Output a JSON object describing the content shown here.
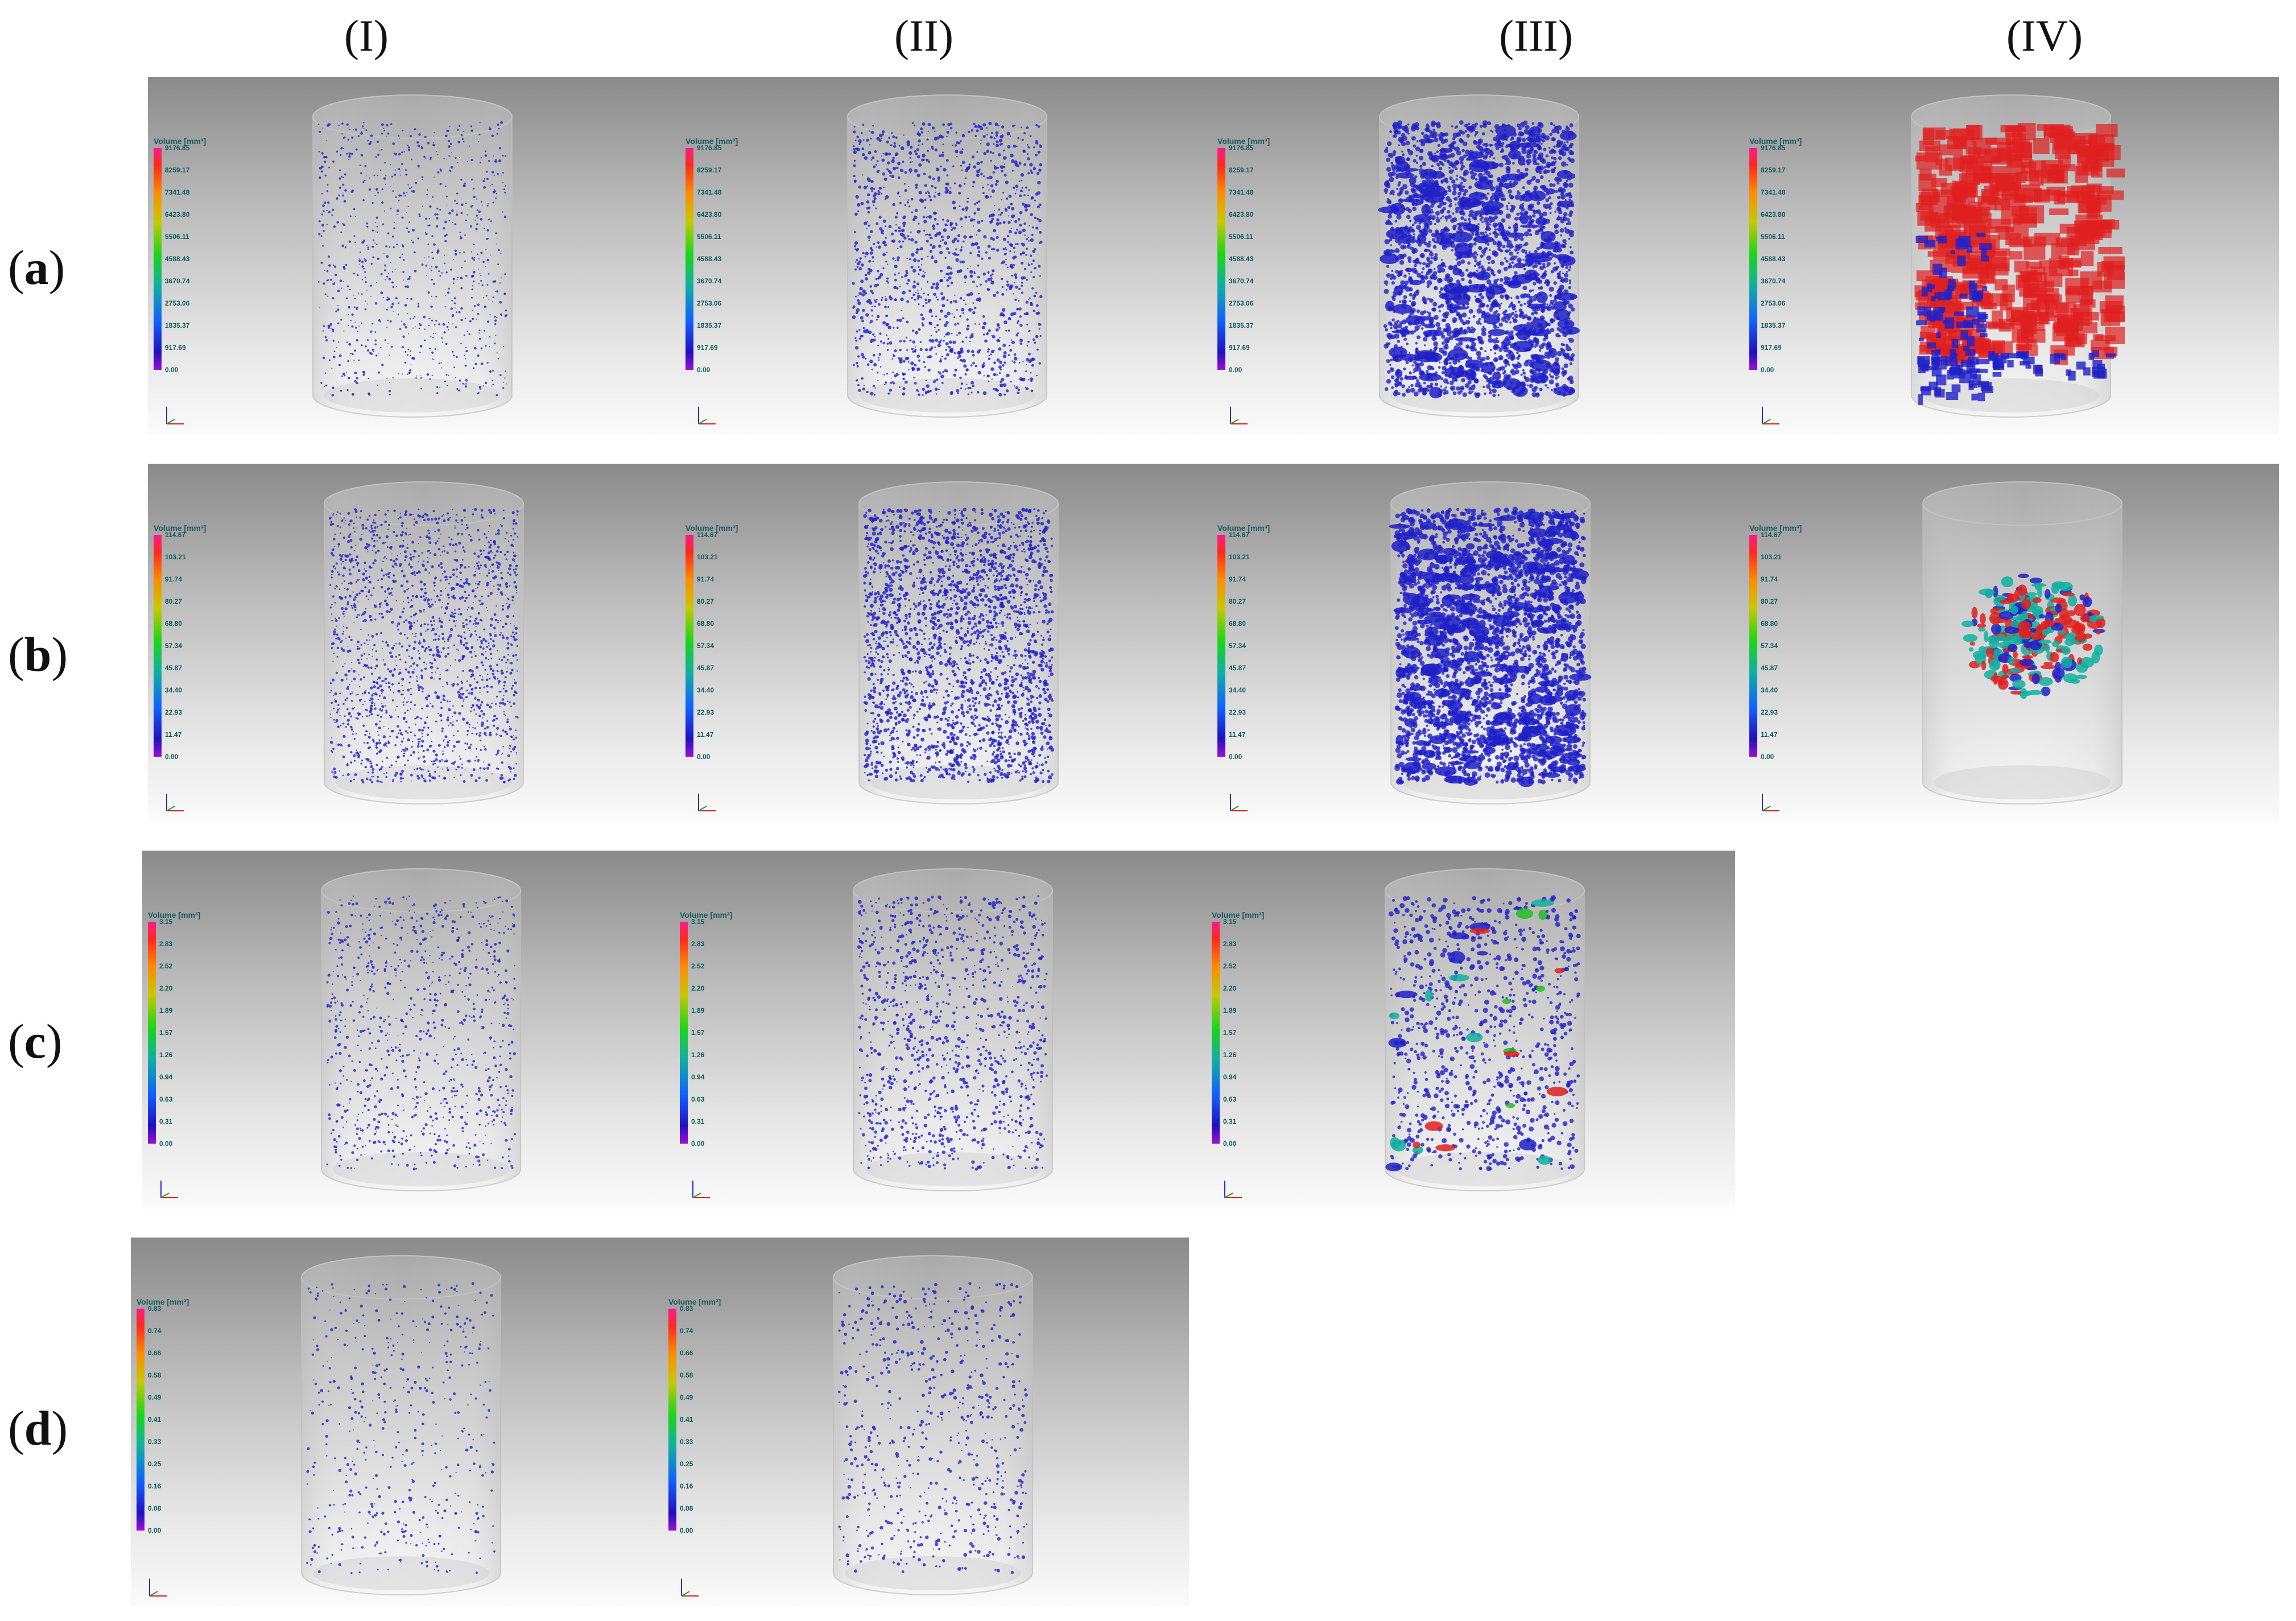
{
  "columns": [
    "(I)",
    "(II)",
    "(III)",
    "(IV)"
  ],
  "rows": [
    {
      "label": "a",
      "legend_title": "Volume [mm³]",
      "legend_ticks": [
        "9176.85",
        "8259.17",
        "7341.48",
        "6423.80",
        "5506.11",
        "4588.43",
        "3670.74",
        "2753.06",
        "1835.37",
        "917.69",
        "0.00"
      ],
      "panels": [
        "I",
        "II",
        "III",
        "IV"
      ]
    },
    {
      "label": "b",
      "legend_title": "Volume [mm³]",
      "legend_ticks": [
        "114.67",
        "103.21",
        "91.74",
        "80.27",
        "68.80",
        "57.34",
        "45.87",
        "34.40",
        "22.93",
        "11.47",
        "0.00"
      ],
      "panels": [
        "I",
        "II",
        "III",
        "IV"
      ]
    },
    {
      "label": "c",
      "legend_title": "Volume [mm³]",
      "legend_ticks": [
        "3.15",
        "2.83",
        "2.52",
        "2.20",
        "1.89",
        "1.57",
        "1.26",
        "0.94",
        "0.63",
        "0.31",
        "0.00"
      ],
      "panels": [
        "I",
        "II",
        "III"
      ]
    },
    {
      "label": "d",
      "legend_title": "Volume [mm³]",
      "legend_ticks": [
        "0.83",
        "0.74",
        "0.66",
        "0.58",
        "0.49",
        "0.41",
        "0.33",
        "0.25",
        "0.16",
        "0.08",
        "0.00"
      ],
      "panels": [
        "I",
        "II"
      ]
    }
  ],
  "colors": {
    "pore_blue": "#2020c8",
    "pore_red": "#e02020",
    "pore_teal": "#10b0a0",
    "pore_green": "#20c020"
  }
}
